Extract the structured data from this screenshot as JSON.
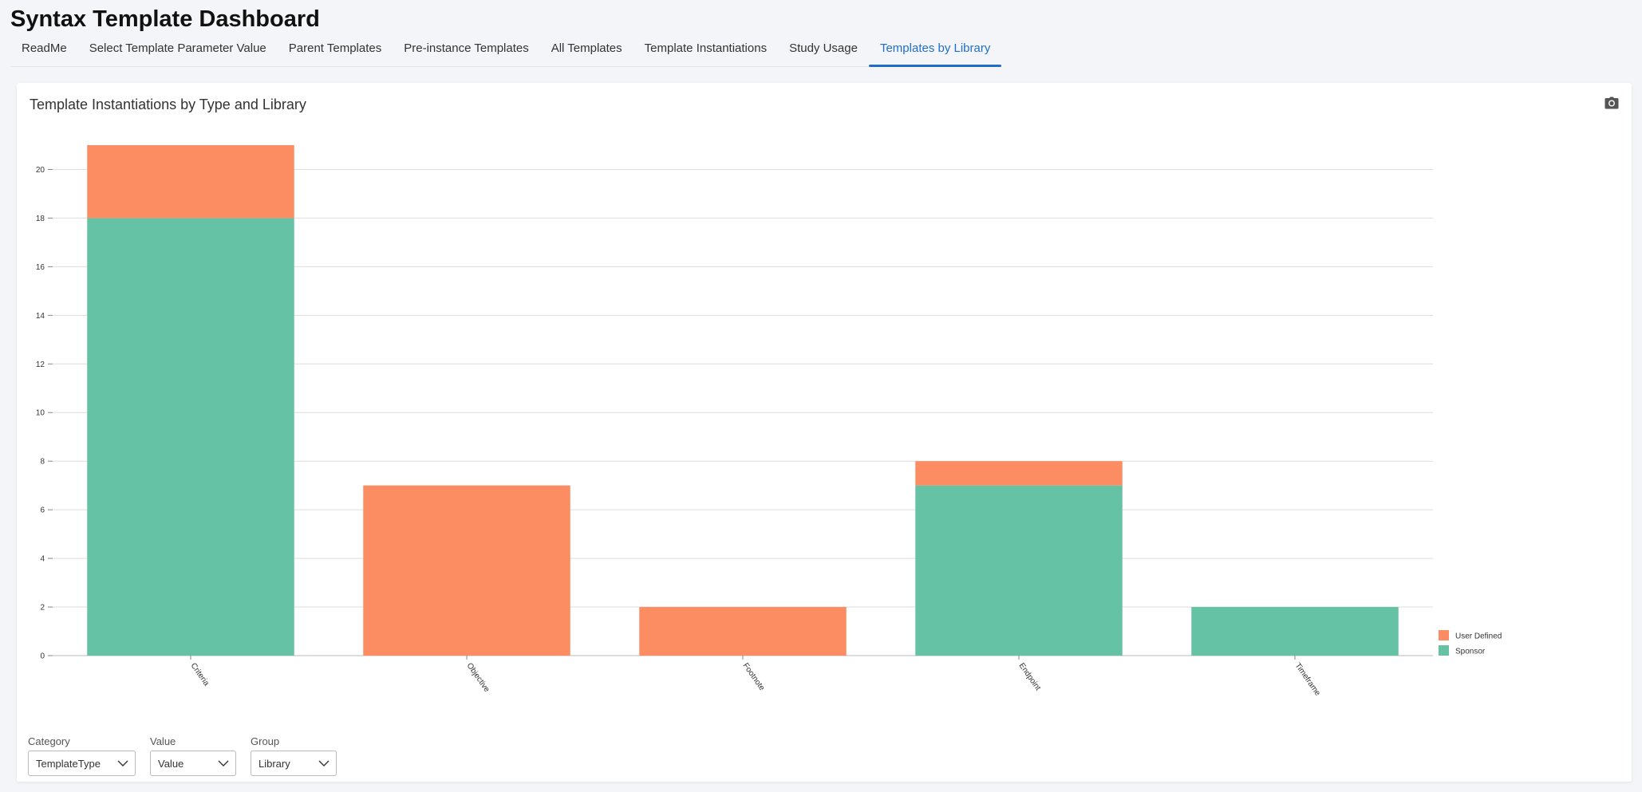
{
  "header": {
    "title": "Syntax Template Dashboard"
  },
  "tabs": [
    {
      "label": "ReadMe",
      "active": false
    },
    {
      "label": "Select Template Parameter Value",
      "active": false
    },
    {
      "label": "Parent Templates",
      "active": false
    },
    {
      "label": "Pre-instance Templates",
      "active": false
    },
    {
      "label": "All Templates",
      "active": false
    },
    {
      "label": "Template Instantiations",
      "active": false
    },
    {
      "label": "Study Usage",
      "active": false
    },
    {
      "label": "Templates by Library",
      "active": true
    }
  ],
  "card": {
    "title": "Template Instantiations by Type and Library",
    "camera_icon": "camera-icon"
  },
  "chart_data": {
    "type": "bar",
    "stacked": true,
    "title": "",
    "xlabel": "",
    "ylabel": "",
    "categories": [
      "Criteria",
      "Objective",
      "Footnote",
      "Endpoint",
      "Timeframe"
    ],
    "series": [
      {
        "name": "Sponsor",
        "values": [
          18,
          0,
          0,
          7,
          2
        ],
        "color": "#66c2a5"
      },
      {
        "name": "User Defined",
        "values": [
          3,
          7,
          2,
          1,
          0
        ],
        "color": "#fc8d62"
      }
    ],
    "yticks": [
      0,
      2,
      4,
      6,
      8,
      10,
      12,
      14,
      16,
      18,
      20
    ],
    "ylim": [
      0,
      21
    ],
    "grid": true,
    "legend_position": "bottom-right",
    "legend_order": [
      "User Defined",
      "Sponsor"
    ]
  },
  "controls": [
    {
      "label": "Category",
      "value": "TemplateType"
    },
    {
      "label": "Value",
      "value": "Value"
    },
    {
      "label": "Group",
      "value": "Library"
    }
  ]
}
